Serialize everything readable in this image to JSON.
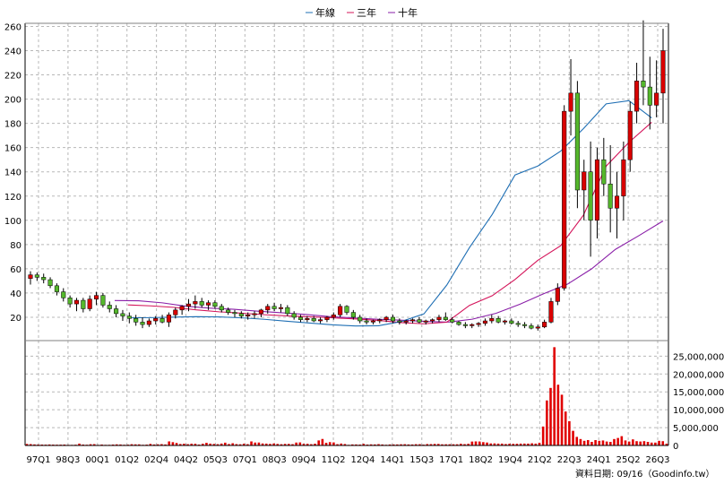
{
  "chart_data": {
    "type": "candlestick",
    "legend": {
      "placement": "top-center",
      "items": [
        {
          "label": "年線",
          "color": "#1f6fb4"
        },
        {
          "label": "三年",
          "color": "#d4145a"
        },
        {
          "label": "十年",
          "color": "#8a1fa8"
        }
      ]
    },
    "price_axis": {
      "ylim": [
        0,
        270
      ],
      "ticks": [
        20,
        40,
        60,
        80,
        100,
        120,
        140,
        160,
        180,
        200,
        220,
        240,
        260
      ]
    },
    "volume_axis": {
      "ylim": [
        0,
        30000000
      ],
      "tick_labels": [
        "0",
        "5,000,000",
        "10,000,000",
        "15,000,000",
        "20,000,000",
        "25,000,000"
      ],
      "tick_values": [
        0,
        5000000,
        10000000,
        15000000,
        20000000,
        25000000
      ]
    },
    "x_tick_labels": [
      "97Q1",
      "98Q3",
      "00Q1",
      "01Q2",
      "02Q4",
      "04Q2",
      "05Q3",
      "07Q1",
      "08Q3",
      "09Q4",
      "11Q2",
      "12Q4",
      "14Q1",
      "15Q3",
      "17Q1",
      "18Q2",
      "19Q4",
      "21Q2",
      "22Q3",
      "24Q1",
      "25Q2",
      "26Q3"
    ],
    "ohlc": [
      [
        52,
        58,
        47,
        55
      ],
      [
        55,
        57,
        50,
        53
      ],
      [
        53,
        56,
        48,
        51
      ],
      [
        51,
        53,
        44,
        46
      ],
      [
        46,
        48,
        38,
        41
      ],
      [
        41,
        44,
        33,
        36
      ],
      [
        36,
        38,
        28,
        31
      ],
      [
        31,
        36,
        25,
        34
      ],
      [
        34,
        36,
        24,
        27
      ],
      [
        27,
        38,
        25,
        35
      ],
      [
        35,
        41,
        30,
        38
      ],
      [
        38,
        40,
        28,
        30
      ],
      [
        30,
        33,
        24,
        27
      ],
      [
        27,
        30,
        20,
        23
      ],
      [
        23,
        26,
        17,
        21
      ],
      [
        21,
        24,
        15,
        19
      ],
      [
        19,
        22,
        13,
        16
      ],
      [
        16,
        20,
        11,
        14
      ],
      [
        14,
        19,
        12,
        17
      ],
      [
        17,
        21,
        14,
        19
      ],
      [
        19,
        22,
        15,
        16
      ],
      [
        16,
        24,
        12,
        22
      ],
      [
        22,
        28,
        19,
        26
      ],
      [
        26,
        30,
        22,
        29
      ],
      [
        29,
        35,
        25,
        31
      ],
      [
        31,
        38,
        27,
        33
      ],
      [
        33,
        36,
        28,
        30
      ],
      [
        30,
        34,
        26,
        32
      ],
      [
        32,
        34,
        27,
        29
      ],
      [
        29,
        31,
        24,
        26
      ],
      [
        26,
        28,
        22,
        24
      ],
      [
        24,
        26,
        20,
        23
      ],
      [
        23,
        25,
        19,
        21
      ],
      [
        21,
        24,
        18,
        22
      ],
      [
        22,
        25,
        19,
        23
      ],
      [
        23,
        27,
        20,
        26
      ],
      [
        26,
        31,
        23,
        29
      ],
      [
        29,
        32,
        25,
        27
      ],
      [
        27,
        31,
        24,
        28
      ],
      [
        28,
        30,
        21,
        23
      ],
      [
        23,
        25,
        18,
        20
      ],
      [
        20,
        22,
        16,
        18
      ],
      [
        18,
        21,
        16,
        19
      ],
      [
        19,
        21,
        16,
        17
      ],
      [
        17,
        20,
        15,
        18
      ],
      [
        18,
        21,
        16,
        20
      ],
      [
        20,
        24,
        18,
        22
      ],
      [
        22,
        31,
        20,
        29
      ],
      [
        29,
        30,
        22,
        24
      ],
      [
        24,
        26,
        18,
        20
      ],
      [
        20,
        22,
        15,
        17
      ],
      [
        17,
        19,
        14,
        16
      ],
      [
        16,
        18,
        14,
        17
      ],
      [
        17,
        19,
        15,
        18
      ],
      [
        18,
        21,
        16,
        20
      ],
      [
        20,
        22,
        15,
        17
      ],
      [
        17,
        19,
        14,
        16
      ],
      [
        16,
        18,
        14,
        17
      ],
      [
        17,
        19,
        15,
        18
      ],
      [
        18,
        20,
        15,
        16
      ],
      [
        16,
        18,
        14,
        17
      ],
      [
        17,
        19,
        15,
        18
      ],
      [
        18,
        22,
        16,
        20
      ],
      [
        20,
        24,
        17,
        18
      ],
      [
        18,
        20,
        15,
        16
      ],
      [
        16,
        17,
        13,
        14
      ],
      [
        14,
        16,
        11,
        13
      ],
      [
        13,
        15,
        11,
        14
      ],
      [
        14,
        16,
        12,
        15
      ],
      [
        15,
        19,
        13,
        17
      ],
      [
        17,
        22,
        15,
        19
      ],
      [
        19,
        21,
        15,
        16
      ],
      [
        16,
        18,
        14,
        17
      ],
      [
        17,
        19,
        14,
        15
      ],
      [
        15,
        17,
        12,
        14
      ],
      [
        14,
        16,
        11,
        13
      ],
      [
        13,
        15,
        10,
        11
      ],
      [
        11,
        14,
        9,
        12
      ],
      [
        12,
        18,
        11,
        16
      ],
      [
        16,
        36,
        15,
        33
      ],
      [
        33,
        48,
        30,
        44
      ],
      [
        44,
        195,
        42,
        190
      ],
      [
        190,
        233,
        170,
        205
      ],
      [
        205,
        215,
        110,
        125
      ],
      [
        125,
        150,
        100,
        140
      ],
      [
        140,
        165,
        70,
        100
      ],
      [
        100,
        160,
        85,
        150
      ],
      [
        150,
        168,
        120,
        130
      ],
      [
        130,
        162,
        90,
        110
      ],
      [
        110,
        140,
        85,
        120
      ],
      [
        120,
        165,
        100,
        150
      ],
      [
        150,
        198,
        140,
        190
      ],
      [
        190,
        230,
        180,
        215
      ],
      [
        215,
        265,
        195,
        210
      ],
      [
        210,
        235,
        175,
        195
      ],
      [
        195,
        232,
        185,
        205
      ],
      [
        205,
        258,
        180,
        240
      ]
    ],
    "ma_1y": [
      [
        0.5,
        19.5
      ],
      [
        1.5,
        19.7
      ],
      [
        2.5,
        20.1
      ],
      [
        3.5,
        20.5
      ],
      [
        4.5,
        20.3
      ],
      [
        5.5,
        19.5
      ],
      [
        6.5,
        18.3
      ],
      [
        7.5,
        16.7
      ],
      [
        8.5,
        15.2
      ],
      [
        9.5,
        13.7
      ],
      [
        10.5,
        12.8
      ],
      [
        11.5,
        13.0
      ],
      [
        12.5,
        16.4
      ],
      [
        13.5,
        22.8
      ],
      [
        14.5,
        46.5
      ],
      [
        15.5,
        77.5
      ],
      [
        16.5,
        104.9
      ],
      [
        17.5,
        137.4
      ],
      [
        18.5,
        144.8
      ],
      [
        19.5,
        157.0
      ],
      [
        20.5,
        175.6
      ],
      [
        21.5,
        196.1
      ],
      [
        22.5,
        198.7
      ],
      [
        23.5,
        184.5
      ]
    ],
    "ma_3y": [
      [
        0.5,
        30.2
      ],
      [
        1.5,
        29.4
      ],
      [
        2.5,
        28.2
      ],
      [
        3.5,
        26.1
      ],
      [
        4.5,
        24.5
      ],
      [
        5.5,
        23.4
      ],
      [
        6.5,
        22.1
      ],
      [
        7.5,
        21.1
      ],
      [
        8.5,
        20.4
      ],
      [
        9.5,
        19.5
      ],
      [
        10.5,
        18.6
      ],
      [
        11.5,
        17.4
      ],
      [
        12.5,
        15.6
      ],
      [
        13.5,
        14.6
      ],
      [
        14.5,
        15.9
      ],
      [
        15.5,
        29.8
      ],
      [
        16.5,
        37.8
      ],
      [
        17.5,
        51.2
      ],
      [
        18.5,
        67.0
      ],
      [
        19.5,
        79.0
      ],
      [
        20.5,
        104.1
      ],
      [
        21.5,
        144.7
      ],
      [
        22.5,
        164.3
      ],
      [
        23.5,
        180.9
      ]
    ],
    "ma_10y": [
      [
        1.0,
        33.8
      ],
      [
        2.0,
        33.6
      ],
      [
        3.0,
        31.9
      ],
      [
        4.0,
        29.1
      ],
      [
        5.0,
        27.5
      ],
      [
        6.0,
        26.6
      ],
      [
        7.0,
        25.0
      ],
      [
        8.0,
        23.7
      ],
      [
        9.0,
        22.3
      ],
      [
        10.0,
        20.6
      ],
      [
        11.0,
        19.5
      ],
      [
        12.0,
        18.4
      ],
      [
        13.0,
        17.6
      ],
      [
        14.0,
        16.6
      ],
      [
        15.0,
        16.0
      ],
      [
        16.0,
        18.4
      ],
      [
        17.0,
        23.3
      ],
      [
        18.0,
        30.8
      ],
      [
        19.0,
        39.5
      ],
      [
        20.0,
        47.4
      ],
      [
        21.0,
        59.9
      ],
      [
        22.0,
        76.0
      ],
      [
        23.0,
        87.5
      ],
      [
        24.0,
        99.5
      ]
    ],
    "volume": [
      420000,
      380000,
      300000,
      260000,
      250000,
      230000,
      280000,
      240000,
      220000,
      230000,
      260000,
      180000,
      170000,
      210000,
      520000,
      260000,
      210000,
      350000,
      370000,
      170000,
      260000,
      180000,
      190000,
      260000,
      310000,
      280000,
      200000,
      230000,
      350000,
      310000,
      310000,
      190000,
      240000,
      440000,
      280000,
      320000,
      370000,
      280000,
      1130000,
      920000,
      700000,
      410000,
      490000,
      360000,
      500000,
      480000,
      260000,
      490000,
      740000,
      520000,
      420000,
      360000,
      530000,
      780000,
      400000,
      620000,
      380000,
      330000,
      490000,
      360000,
      1130000,
      810000,
      820000,
      560000,
      520000,
      440000,
      560000,
      430000,
      350000,
      440000,
      440000,
      360000,
      810000,
      850000,
      440000,
      470000,
      360000,
      500000,
      1410000,
      1820000,
      750000,
      930000,
      850000,
      360000,
      540000,
      400000,
      180000,
      290000,
      290000,
      250000,
      440000,
      250000,
      310000,
      290000,
      370000,
      280000,
      200000,
      280000,
      290000,
      290000,
      330000,
      350000,
      290000,
      280000,
      350000,
      350000,
      230000,
      390000,
      380000,
      430000,
      430000,
      320000,
      330000,
      330000,
      330000,
      330000,
      480000,
      370000,
      480000,
      1090000,
      1130000,
      1110000,
      930000,
      820000,
      570000,
      580000,
      520000,
      520000,
      400000,
      480000,
      460000,
      480000,
      520000,
      530000,
      520000,
      610000,
      520000,
      760000,
      5300000,
      12600000,
      16100000,
      27500000,
      17000000,
      14200000,
      9500000,
      6800000,
      4100000,
      2400000,
      1800000,
      1300000,
      1500000,
      1000000,
      1500000,
      1300000,
      1400000,
      1100000,
      1000000,
      1800000,
      2100000,
      2600000,
      1400000,
      1100000,
      1700000,
      1200000,
      1100000,
      1200000,
      1000000,
      800000,
      800000,
      1300000,
      1200000,
      500000
    ]
  }
}
